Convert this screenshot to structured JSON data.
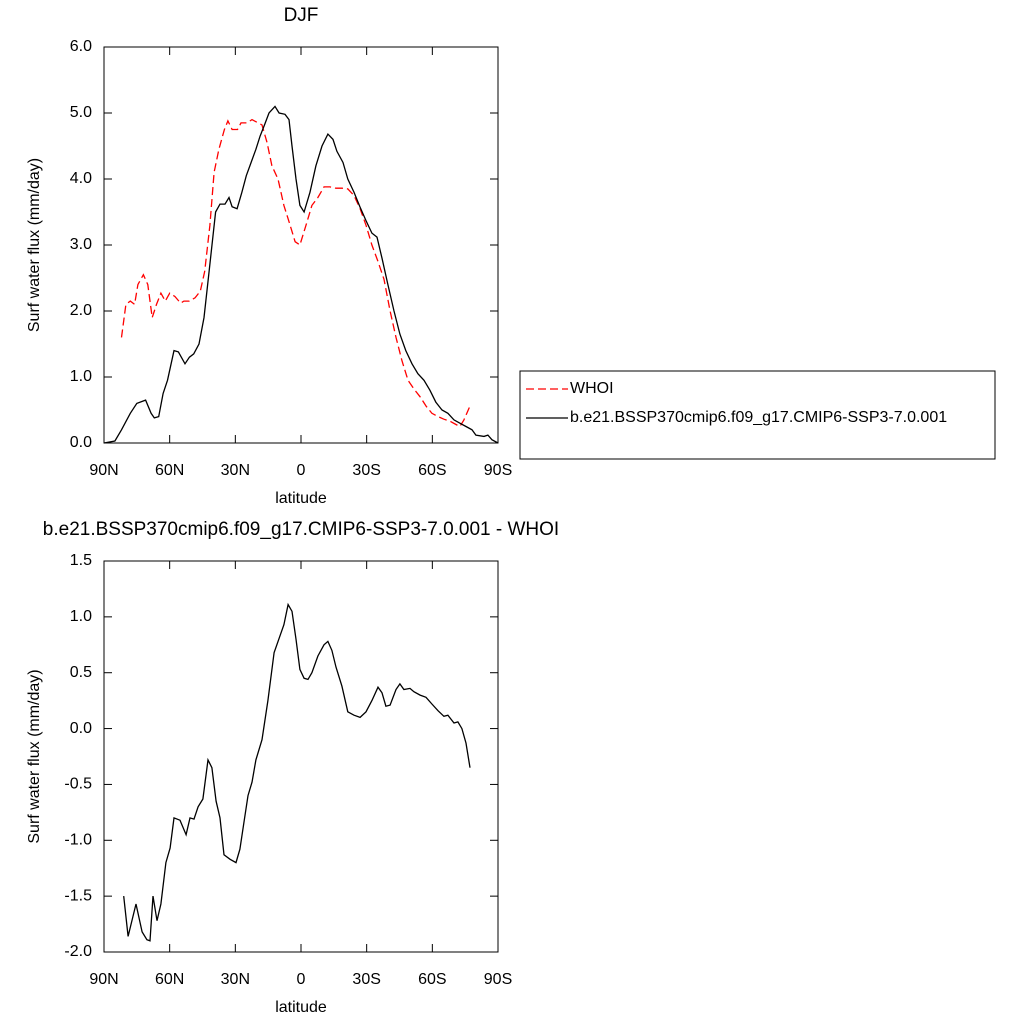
{
  "chart_data": [
    {
      "type": "line",
      "title": "DJF",
      "xlabel": "latitude",
      "ylabel": "Surf water flux (mm/day)",
      "xlim": [
        90,
        -90
      ],
      "xticks": [
        {
          "value": 90,
          "label": "90N"
        },
        {
          "value": 60,
          "label": "60N"
        },
        {
          "value": 30,
          "label": "30N"
        },
        0,
        {
          "value": -30,
          "label": "30S"
        },
        {
          "value": -60,
          "label": "60S"
        },
        {
          "value": -90,
          "label": "90S"
        }
      ],
      "ylim": [
        0,
        6
      ],
      "yticks": [
        {
          "value": 0,
          "label": "0.0"
        },
        {
          "value": 1,
          "label": "1.0"
        },
        {
          "value": 2,
          "label": "2.0"
        },
        {
          "value": 3,
          "label": "3.0"
        },
        {
          "value": 4,
          "label": "4.0"
        },
        {
          "value": 5,
          "label": "5.0"
        },
        {
          "value": 6,
          "label": "6.0"
        }
      ],
      "legend": "right",
      "series": [
        {
          "name": "WHOI",
          "color": "#ff0000",
          "line_style": "dashed",
          "x": [
            82,
            80,
            78,
            76,
            74.5,
            72,
            70,
            68,
            66,
            64,
            62,
            60,
            57.6,
            55,
            53.5,
            51,
            48.4,
            46,
            44,
            41.6,
            39.7,
            37.5,
            35,
            33.4,
            31.5,
            29,
            27.4,
            24.7,
            22.4,
            19.6,
            17.8,
            15.5,
            13.3,
            10.5,
            7.8,
            5,
            2.7,
            0.5,
            -2.3,
            -5,
            -7.7,
            -10.5,
            -13.2,
            -16,
            -18.7,
            -21.4,
            -24.2,
            -27,
            -29.7,
            -32.4,
            -35.2,
            -37.9,
            -40.7,
            -43.4,
            -46.1,
            -48.9,
            -51.6,
            -54.4,
            -57.1,
            -59.8,
            -62.6,
            -65.3,
            -68.1,
            -70.8,
            -72.6,
            -74.4,
            -77.2
          ],
          "values": [
            1.6,
            2.1,
            2.15,
            2.1,
            2.4,
            2.55,
            2.4,
            1.9,
            2.1,
            2.27,
            2.15,
            2.27,
            2.22,
            2.12,
            2.15,
            2.15,
            2.2,
            2.3,
            2.6,
            3.3,
            4.1,
            4.45,
            4.75,
            4.88,
            4.75,
            4.75,
            4.85,
            4.85,
            4.9,
            4.85,
            4.82,
            4.55,
            4.2,
            4.0,
            3.6,
            3.3,
            3.05,
            3.0,
            3.3,
            3.6,
            3.72,
            3.88,
            3.88,
            3.86,
            3.86,
            3.85,
            3.75,
            3.55,
            3.3,
            3.0,
            2.75,
            2.48,
            2.0,
            1.6,
            1.25,
            0.95,
            0.82,
            0.7,
            0.56,
            0.45,
            0.4,
            0.36,
            0.33,
            0.28,
            0.25,
            0.35,
            0.56
          ]
        },
        {
          "name": "b.e21.BSSP370cmip6.f09_g17.CMIP6-SSP3-7.0.001",
          "color": "#000000",
          "line_style": "solid",
          "x": [
            90,
            85,
            82,
            78,
            75,
            71,
            68.5,
            67,
            65,
            63,
            61,
            58,
            56,
            53,
            51,
            49,
            46.6,
            44.3,
            42,
            39,
            37,
            34.7,
            32.9,
            31.5,
            29.2,
            27,
            25,
            22.8,
            20.6,
            18.7,
            16.9,
            14.6,
            11.9,
            10,
            7.3,
            5.5,
            4.1,
            2.3,
            0.5,
            -1.4,
            -4.1,
            -6.8,
            -9.6,
            -12.3,
            -14.6,
            -16.4,
            -19.2,
            -21.4,
            -24.2,
            -26.9,
            -29.7,
            -32.4,
            -34.7,
            -37,
            -39.7,
            -42.5,
            -45.2,
            -47.9,
            -50.7,
            -53.4,
            -56.2,
            -58.9,
            -61.6,
            -64.4,
            -67.1,
            -69.9,
            -72.6,
            -75.4,
            -78.1,
            -79.9,
            -83.6,
            -85.4,
            -87.2,
            -90
          ],
          "values": [
            0,
            0.03,
            0.2,
            0.45,
            0.6,
            0.65,
            0.45,
            0.38,
            0.4,
            0.75,
            0.95,
            1.4,
            1.38,
            1.2,
            1.3,
            1.35,
            1.5,
            1.9,
            2.6,
            3.5,
            3.62,
            3.62,
            3.72,
            3.58,
            3.55,
            3.8,
            4.05,
            4.25,
            4.45,
            4.65,
            4.8,
            5.0,
            5.1,
            5.0,
            4.98,
            4.9,
            4.5,
            4.0,
            3.6,
            3.5,
            3.8,
            4.2,
            4.5,
            4.68,
            4.6,
            4.42,
            4.25,
            4.0,
            3.8,
            3.58,
            3.37,
            3.18,
            3.12,
            2.8,
            2.4,
            2.0,
            1.65,
            1.4,
            1.2,
            1.05,
            0.95,
            0.8,
            0.62,
            0.5,
            0.45,
            0.35,
            0.3,
            0.25,
            0.2,
            0.12,
            0.1,
            0.12,
            0.05,
            0
          ]
        }
      ]
    },
    {
      "type": "line",
      "title": "b.e21.BSSP370cmip6.f09_g17.CMIP6-SSP3-7.0.001 - WHOI",
      "xlabel": "latitude",
      "ylabel": "Surf water flux (mm/day)",
      "xlim": [
        90,
        -90
      ],
      "xticks": [
        {
          "value": 90,
          "label": "90N"
        },
        {
          "value": 60,
          "label": "60N"
        },
        {
          "value": 30,
          "label": "30N"
        },
        0,
        {
          "value": -30,
          "label": "30S"
        },
        {
          "value": -60,
          "label": "60S"
        },
        {
          "value": -90,
          "label": "90S"
        }
      ],
      "ylim": [
        -2,
        1.5
      ],
      "yticks": [
        {
          "value": -2,
          "label": "-2.0"
        },
        1.5,
        {
          "value": -1,
          "label": "-1.0"
        },
        -0.5,
        {
          "value": 0,
          "label": "0.0"
        },
        0.5,
        {
          "value": 1,
          "label": "1.0"
        },
        -1.5
      ],
      "series": [
        {
          "color": "#000000",
          "line_style": "solid",
          "x": [
            81,
            79,
            75.4,
            72.6,
            70.4,
            69,
            67.6,
            65.8,
            64,
            61.7,
            59.8,
            58,
            55.3,
            52.5,
            50.7,
            48.9,
            47,
            44.8,
            42.5,
            40.7,
            38.8,
            37,
            35.2,
            32.4,
            29.7,
            27.9,
            26,
            24.2,
            22.4,
            20.6,
            17.8,
            15.1,
            12.3,
            9.6,
            7.8,
            5.9,
            4.1,
            2.3,
            0.5,
            -1.4,
            -3.2,
            -5,
            -7.7,
            -10.5,
            -12.3,
            -14.1,
            -16,
            -18.7,
            -21.4,
            -24.2,
            -27,
            -29.7,
            -32.4,
            -35.2,
            -37,
            -38.8,
            -40.7,
            -43.4,
            -45.2,
            -47,
            -49.8,
            -51.6,
            -54.4,
            -57.1,
            -59.8,
            -62.6,
            -65.3,
            -67.1,
            -69.9,
            -71.7,
            -73.5,
            -75.4,
            -77.2
          ],
          "values": [
            -1.5,
            -1.86,
            -1.57,
            -1.82,
            -1.89,
            -1.9,
            -1.5,
            -1.72,
            -1.57,
            -1.2,
            -1.07,
            -0.8,
            -0.82,
            -0.95,
            -0.8,
            -0.81,
            -0.7,
            -0.63,
            -0.28,
            -0.35,
            -0.65,
            -0.8,
            -1.13,
            -1.17,
            -1.2,
            -1.08,
            -0.83,
            -0.6,
            -0.48,
            -0.28,
            -0.1,
            0.25,
            0.68,
            0.83,
            0.93,
            1.11,
            1.05,
            0.8,
            0.53,
            0.45,
            0.44,
            0.5,
            0.65,
            0.75,
            0.78,
            0.7,
            0.55,
            0.38,
            0.15,
            0.12,
            0.1,
            0.15,
            0.25,
            0.37,
            0.32,
            0.2,
            0.21,
            0.35,
            0.4,
            0.35,
            0.36,
            0.33,
            0.3,
            0.28,
            0.22,
            0.16,
            0.11,
            0.12,
            0.05,
            0.06,
            0.0,
            -0.13,
            -0.35
          ]
        }
      ]
    }
  ]
}
